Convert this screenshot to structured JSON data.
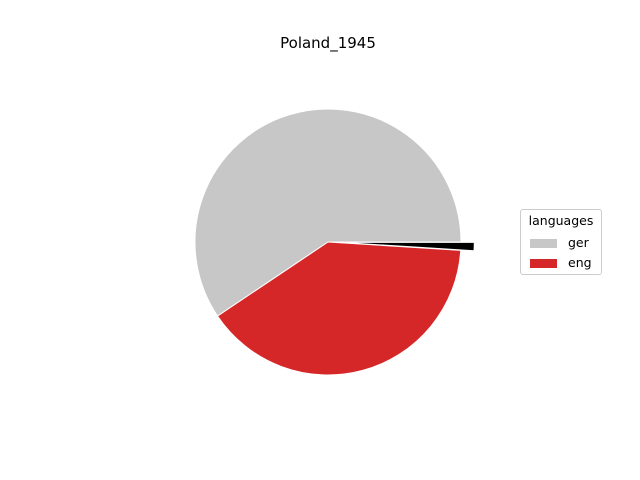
{
  "chart_data": {
    "type": "pie",
    "title": "Poland_1945",
    "legend_title": "languages",
    "legend_position": "right",
    "slices": [
      {
        "label": "ger",
        "value": 59.4,
        "color": "#c7c7c7"
      },
      {
        "label": "eng",
        "value": 39.6,
        "color": "#d62728"
      },
      {
        "label": "",
        "value": 1.0,
        "color": "#000000",
        "exploded": true
      }
    ]
  }
}
